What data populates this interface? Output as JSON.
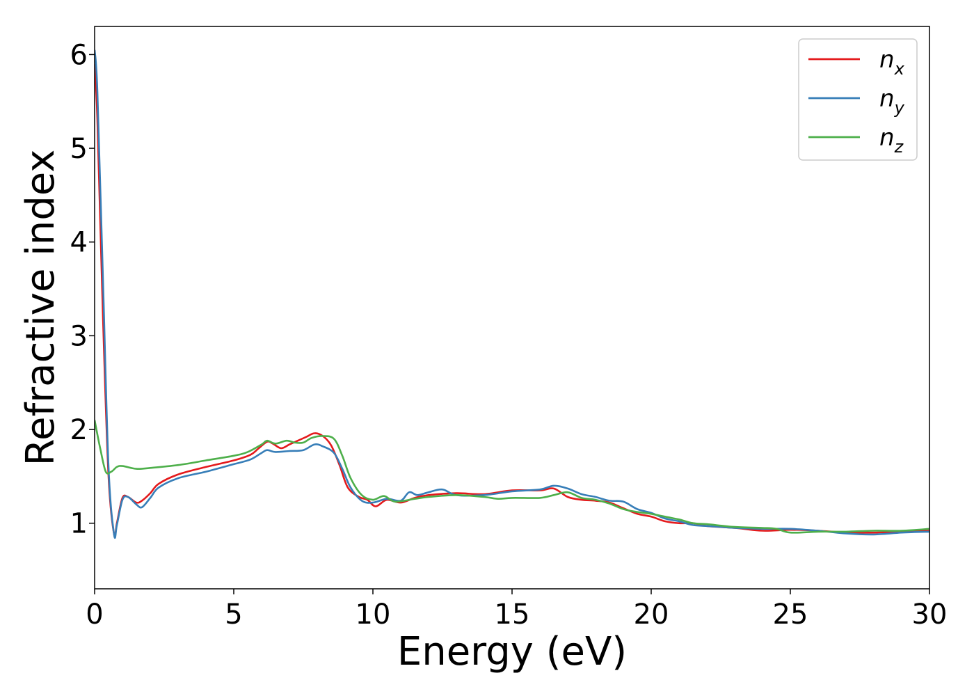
{
  "chart_data": {
    "type": "line",
    "xlabel": "Energy (eV)",
    "ylabel": "Refractive index",
    "xlim": [
      0,
      30
    ],
    "ylim": [
      0.3,
      6.3
    ],
    "xticks": [
      0,
      5,
      10,
      15,
      20,
      25,
      30
    ],
    "yticks": [
      1,
      2,
      3,
      4,
      5,
      6
    ],
    "grid": false,
    "legend_position": "top-right",
    "series": [
      {
        "name": "n",
        "subscript": "x",
        "color": "#e41a1c",
        "points": [
          [
            0,
            5.9
          ],
          [
            0.1,
            5.3
          ],
          [
            0.3,
            3.2
          ],
          [
            0.5,
            1.5
          ],
          [
            0.7,
            0.88
          ],
          [
            0.8,
            1.0
          ],
          [
            1.0,
            1.27
          ],
          [
            1.2,
            1.28
          ],
          [
            1.5,
            1.22
          ],
          [
            1.7,
            1.24
          ],
          [
            2.0,
            1.32
          ],
          [
            2.3,
            1.42
          ],
          [
            3.0,
            1.52
          ],
          [
            4.0,
            1.6
          ],
          [
            5.0,
            1.67
          ],
          [
            5.6,
            1.73
          ],
          [
            5.9,
            1.8
          ],
          [
            6.2,
            1.87
          ],
          [
            6.4,
            1.85
          ],
          [
            6.7,
            1.8
          ],
          [
            7.0,
            1.84
          ],
          [
            7.3,
            1.88
          ],
          [
            7.6,
            1.92
          ],
          [
            7.9,
            1.96
          ],
          [
            8.2,
            1.93
          ],
          [
            8.5,
            1.83
          ],
          [
            8.8,
            1.62
          ],
          [
            9.1,
            1.38
          ],
          [
            9.5,
            1.28
          ],
          [
            9.8,
            1.25
          ],
          [
            10.1,
            1.18
          ],
          [
            10.5,
            1.25
          ],
          [
            11.0,
            1.22
          ],
          [
            11.5,
            1.27
          ],
          [
            12.0,
            1.3
          ],
          [
            13.0,
            1.32
          ],
          [
            14.0,
            1.31
          ],
          [
            15.0,
            1.35
          ],
          [
            16.0,
            1.35
          ],
          [
            16.5,
            1.37
          ],
          [
            17.0,
            1.28
          ],
          [
            17.5,
            1.25
          ],
          [
            18.0,
            1.24
          ],
          [
            18.5,
            1.22
          ],
          [
            19.0,
            1.16
          ],
          [
            19.5,
            1.1
          ],
          [
            20.0,
            1.07
          ],
          [
            20.5,
            1.02
          ],
          [
            21.0,
            1.0
          ],
          [
            21.5,
            1.0
          ],
          [
            22.0,
            0.97
          ],
          [
            23.0,
            0.95
          ],
          [
            24.0,
            0.92
          ],
          [
            25.0,
            0.93
          ],
          [
            26.0,
            0.92
          ],
          [
            27.0,
            0.9
          ],
          [
            28.0,
            0.9
          ],
          [
            29.0,
            0.91
          ],
          [
            30.0,
            0.92
          ]
        ]
      },
      {
        "name": "n",
        "subscript": "y",
        "color": "#377eb8",
        "points": [
          [
            0,
            6.05
          ],
          [
            0.1,
            5.6
          ],
          [
            0.3,
            3.6
          ],
          [
            0.5,
            1.6
          ],
          [
            0.7,
            0.88
          ],
          [
            0.8,
            0.98
          ],
          [
            1.0,
            1.25
          ],
          [
            1.2,
            1.28
          ],
          [
            1.5,
            1.2
          ],
          [
            1.7,
            1.17
          ],
          [
            2.0,
            1.27
          ],
          [
            2.3,
            1.38
          ],
          [
            3.0,
            1.48
          ],
          [
            4.0,
            1.55
          ],
          [
            5.0,
            1.63
          ],
          [
            5.6,
            1.68
          ],
          [
            6.0,
            1.75
          ],
          [
            6.2,
            1.78
          ],
          [
            6.5,
            1.76
          ],
          [
            7.0,
            1.77
          ],
          [
            7.5,
            1.78
          ],
          [
            7.9,
            1.84
          ],
          [
            8.2,
            1.82
          ],
          [
            8.6,
            1.75
          ],
          [
            8.9,
            1.58
          ],
          [
            9.2,
            1.38
          ],
          [
            9.6,
            1.24
          ],
          [
            10.0,
            1.22
          ],
          [
            10.5,
            1.26
          ],
          [
            11.0,
            1.24
          ],
          [
            11.3,
            1.33
          ],
          [
            11.6,
            1.3
          ],
          [
            12.0,
            1.33
          ],
          [
            12.5,
            1.36
          ],
          [
            13.0,
            1.3
          ],
          [
            14.0,
            1.3
          ],
          [
            15.0,
            1.34
          ],
          [
            16.0,
            1.36
          ],
          [
            16.5,
            1.4
          ],
          [
            17.0,
            1.37
          ],
          [
            17.5,
            1.31
          ],
          [
            18.0,
            1.28
          ],
          [
            18.5,
            1.24
          ],
          [
            19.0,
            1.23
          ],
          [
            19.5,
            1.15
          ],
          [
            20.0,
            1.11
          ],
          [
            20.5,
            1.05
          ],
          [
            21.0,
            1.02
          ],
          [
            21.5,
            0.98
          ],
          [
            22.0,
            0.97
          ],
          [
            22.5,
            0.96
          ],
          [
            23.0,
            0.95
          ],
          [
            24.0,
            0.94
          ],
          [
            25.0,
            0.94
          ],
          [
            26.0,
            0.92
          ],
          [
            27.0,
            0.89
          ],
          [
            28.0,
            0.88
          ],
          [
            29.0,
            0.9
          ],
          [
            30.0,
            0.91
          ]
        ]
      },
      {
        "name": "n",
        "subscript": "z",
        "color": "#4daf4a",
        "points": [
          [
            0,
            2.1
          ],
          [
            0.2,
            1.8
          ],
          [
            0.4,
            1.55
          ],
          [
            0.6,
            1.55
          ],
          [
            0.8,
            1.6
          ],
          [
            1.0,
            1.61
          ],
          [
            1.5,
            1.58
          ],
          [
            2.0,
            1.59
          ],
          [
            3.0,
            1.62
          ],
          [
            4.0,
            1.67
          ],
          [
            5.0,
            1.72
          ],
          [
            5.5,
            1.76
          ],
          [
            6.0,
            1.84
          ],
          [
            6.2,
            1.88
          ],
          [
            6.5,
            1.85
          ],
          [
            6.9,
            1.88
          ],
          [
            7.2,
            1.86
          ],
          [
            7.5,
            1.86
          ],
          [
            7.8,
            1.91
          ],
          [
            8.2,
            1.93
          ],
          [
            8.6,
            1.9
          ],
          [
            8.9,
            1.72
          ],
          [
            9.2,
            1.48
          ],
          [
            9.6,
            1.3
          ],
          [
            10.0,
            1.25
          ],
          [
            10.4,
            1.29
          ],
          [
            10.8,
            1.23
          ],
          [
            11.5,
            1.26
          ],
          [
            12.0,
            1.28
          ],
          [
            13.0,
            1.3
          ],
          [
            14.0,
            1.28
          ],
          [
            14.5,
            1.26
          ],
          [
            15.0,
            1.27
          ],
          [
            16.0,
            1.27
          ],
          [
            16.5,
            1.3
          ],
          [
            17.0,
            1.33
          ],
          [
            17.5,
            1.27
          ],
          [
            18.0,
            1.25
          ],
          [
            18.5,
            1.21
          ],
          [
            19.0,
            1.15
          ],
          [
            19.5,
            1.12
          ],
          [
            20.0,
            1.1
          ],
          [
            20.5,
            1.07
          ],
          [
            21.0,
            1.04
          ],
          [
            21.5,
            1.0
          ],
          [
            22.0,
            0.99
          ],
          [
            23.0,
            0.96
          ],
          [
            24.0,
            0.95
          ],
          [
            24.5,
            0.94
          ],
          [
            25.0,
            0.9
          ],
          [
            26.0,
            0.91
          ],
          [
            27.0,
            0.91
          ],
          [
            28.0,
            0.92
          ],
          [
            29.0,
            0.92
          ],
          [
            30.0,
            0.94
          ]
        ]
      }
    ]
  }
}
